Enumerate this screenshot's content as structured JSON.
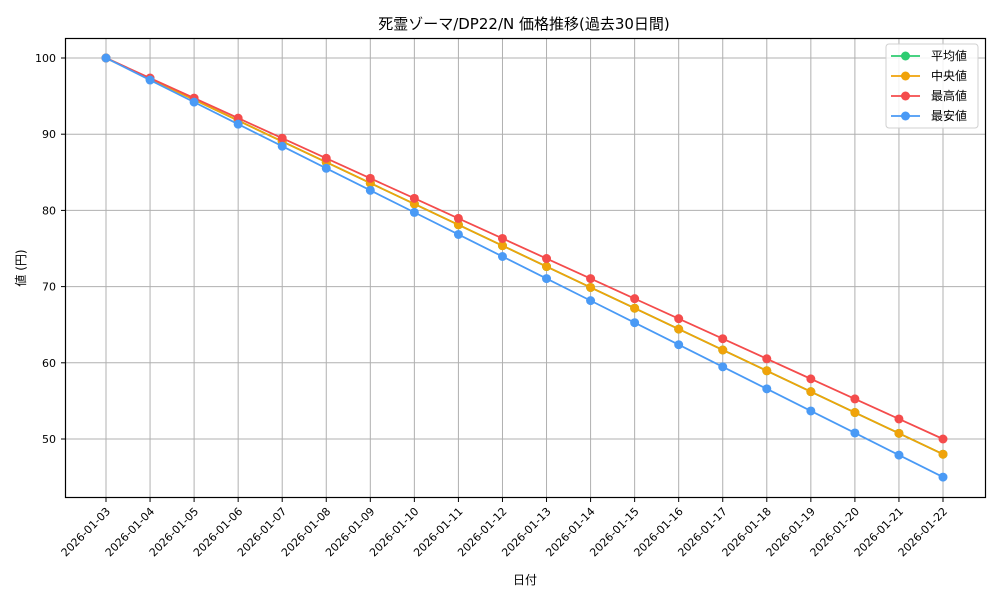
{
  "chart_data": {
    "type": "line",
    "title": "死霊ゾーマ/DP22/N 価格推移(過去30日間)",
    "xlabel": "日付",
    "ylabel": "値 (円)",
    "ylim": [
      42.25,
      102.75
    ],
    "yticks": [
      50,
      60,
      70,
      80,
      90,
      100
    ],
    "grid": true,
    "legend_position": "upper right",
    "categories": [
      "2026-01-03",
      "2026-01-04",
      "2026-01-05",
      "2026-01-06",
      "2026-01-07",
      "2026-01-08",
      "2026-01-09",
      "2026-01-10",
      "2026-01-11",
      "2026-01-12",
      "2026-01-13",
      "2026-01-14",
      "2026-01-15",
      "2026-01-16",
      "2026-01-17",
      "2026-01-18",
      "2026-01-19",
      "2026-01-20",
      "2026-01-21",
      "2026-01-22"
    ],
    "series": [
      {
        "name": "平均値",
        "color": "#2ecc71",
        "values": [
          100.0,
          97.26,
          94.53,
          91.79,
          89.05,
          86.32,
          83.58,
          80.84,
          78.11,
          75.37,
          72.63,
          69.89,
          67.16,
          64.42,
          61.68,
          58.95,
          56.21,
          53.47,
          50.74,
          48.0
        ]
      },
      {
        "name": "中央値",
        "color": "#f0a30a",
        "values": [
          100.0,
          97.26,
          94.53,
          91.79,
          89.05,
          86.32,
          83.58,
          80.84,
          78.11,
          75.37,
          72.63,
          69.89,
          67.16,
          64.42,
          61.68,
          58.95,
          56.21,
          53.47,
          50.74,
          48.0
        ]
      },
      {
        "name": "最高値",
        "color": "#f44c4c",
        "values": [
          100.0,
          97.37,
          94.74,
          92.11,
          89.47,
          86.84,
          84.21,
          81.58,
          78.95,
          76.32,
          73.68,
          71.05,
          68.42,
          65.79,
          63.16,
          60.53,
          57.89,
          55.26,
          52.63,
          50.0
        ]
      },
      {
        "name": "最安値",
        "color": "#4a9af5",
        "values": [
          100.0,
          97.11,
          94.21,
          91.32,
          88.42,
          85.53,
          82.63,
          79.74,
          76.84,
          73.95,
          71.05,
          68.16,
          65.26,
          62.37,
          59.47,
          56.58,
          53.68,
          50.79,
          47.89,
          45.0
        ]
      }
    ]
  }
}
